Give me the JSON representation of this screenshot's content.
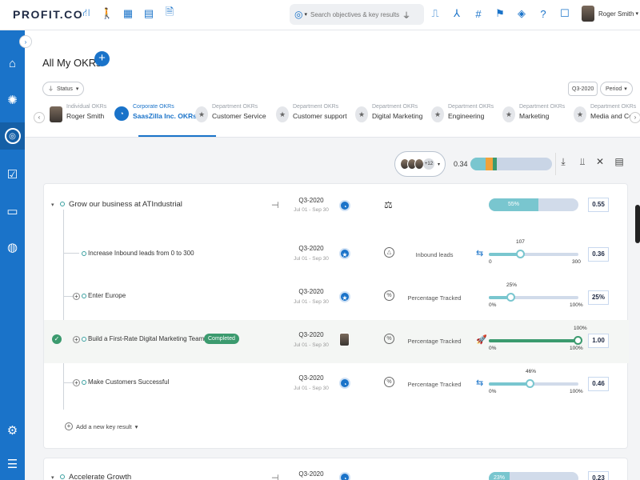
{
  "app": {
    "logo": "PROFIT.CO"
  },
  "search": {
    "placeholder": "Search objectives & key results"
  },
  "user": {
    "name": "Roger Smith"
  },
  "page": {
    "title": "All My OKRs",
    "add_label": "+"
  },
  "filters": {
    "status": "Status",
    "quarter": "Q3-2020",
    "period": "Period"
  },
  "tabs": [
    {
      "small": "Individual OKRs",
      "main": "Roger Smith"
    },
    {
      "small": "Corporate OKRs",
      "main": "SaasZilla Inc. OKRs"
    },
    {
      "small": "Department OKRs",
      "main": "Customer Service"
    },
    {
      "small": "Department OKRs",
      "main": "Customer support"
    },
    {
      "small": "Department OKRs",
      "main": "Digital Marketing"
    },
    {
      "small": "Department OKRs",
      "main": "Engineering"
    },
    {
      "small": "Department OKRs",
      "main": "Marketing"
    },
    {
      "small": "Department OKRs",
      "main": "Media and Co"
    }
  ],
  "toolbar": {
    "more_count": "+12",
    "overall_score": "0.34"
  },
  "objectives": [
    {
      "title": "Grow our business at ATIndustrial",
      "quarter": "Q3-2020",
      "dates": "Jul 01 - Sep 30",
      "progress_label": "55%",
      "progress": 0.55,
      "score": "0.55",
      "key_results": [
        {
          "title": "Increase Inbound leads from 0 to 300",
          "quarter": "Q3-2020",
          "dates": "Jul 01 - Sep 30",
          "metric": "Inbound leads",
          "value_label": "107",
          "min": "0",
          "max": "300",
          "fraction": 0.357,
          "score": "0.36",
          "completed": false
        },
        {
          "title": "Enter Europe",
          "quarter": "Q3-2020",
          "dates": "Jul 01 - Sep 30",
          "metric": "Percentage Tracked",
          "value_label": "25%",
          "min": "0%",
          "max": "100%",
          "fraction": 0.25,
          "score": "25%",
          "completed": false
        },
        {
          "title": "Build a First-Rate Digital Marketing Team",
          "badge": "Completed",
          "quarter": "Q3-2020",
          "dates": "Jul 01 - Sep 30",
          "metric": "Percentage Tracked",
          "value_label": "100%",
          "min": "0%",
          "max": "100%",
          "fraction": 1.0,
          "score": "1.00",
          "completed": true
        },
        {
          "title": "Make Customers Successful",
          "quarter": "Q3-2020",
          "dates": "Jul 01 - Sep 30",
          "metric": "Percentage Tracked",
          "value_label": "46%",
          "min": "0%",
          "max": "100%",
          "fraction": 0.46,
          "score": "0.46",
          "completed": false
        }
      ],
      "add_kr_label": "Add a new key result"
    },
    {
      "title": "Accelerate Growth",
      "quarter": "Q3-2020",
      "progress_label": "23%",
      "progress": 0.23,
      "score": "0.23"
    }
  ],
  "colors": {
    "brand": "#1a73c9",
    "progress": "#79c6cf",
    "completed": "#3b9a6e",
    "track": "#d1dbea"
  }
}
